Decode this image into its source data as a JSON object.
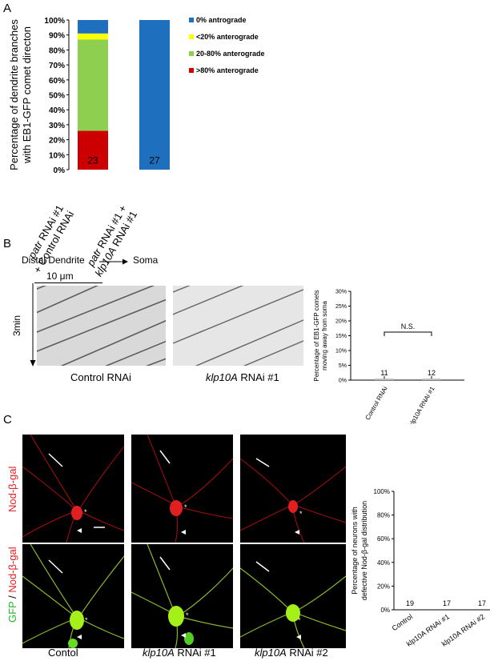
{
  "panel_a": {
    "letter": "A",
    "legend": [
      {
        "label": "0% antrograde",
        "color": "#1f6fbf"
      },
      {
        "label": "<20% anterograde",
        "color": "#ffff00"
      },
      {
        "label": "20-80%  anterograde",
        "color": "#8ecf4f"
      },
      {
        "label": ">80% anterograde",
        "color": "#cc0000"
      }
    ],
    "bar_labels": [
      {
        "line1_italic": "patr",
        "line1_rest": " RNAi #1",
        "line2_prefix": "+ Control RNAi",
        "line2_italic": ""
      },
      {
        "line1_italic": "patr",
        "line1_rest": " RNAi #1 +",
        "line2_prefix": "",
        "line2_italic": "klp10A"
      }
    ],
    "bar2_line2_rest": " RNAi #1"
  },
  "panel_b": {
    "letter": "B",
    "direction_from": "Distal Dendrite",
    "direction_to": "Soma",
    "scale_label": "10 μm",
    "time_label": "3min",
    "kymo_labels": [
      {
        "italic": "",
        "rest": "Control RNAi"
      },
      {
        "italic": "klp10A",
        "rest": " RNAi #1"
      }
    ]
  },
  "panel_c": {
    "letter": "C",
    "row1_label": "Nod-β-gal",
    "row2_label_green": "GFP",
    "row2_label_sep": " / ",
    "row2_label_red": "Nod-β-gal",
    "col_labels": [
      {
        "italic": "",
        "rest": "Contol"
      },
      {
        "italic": "klp10A",
        "rest": " RNAi #1"
      },
      {
        "italic": "klp10A",
        "rest": " RNAi #2"
      }
    ]
  },
  "chart_data": [
    {
      "type": "bar",
      "stacked": true,
      "categories": [
        "patr RNAi #1 + Control RNAi",
        "patr RNAi #1 + klp10A RNAi #1"
      ],
      "series": [
        {
          "name": ">80% anterograde",
          "values": [
            26,
            0
          ],
          "color": "#cc0000"
        },
        {
          "name": "20-80%  anterograde",
          "values": [
            61,
            0
          ],
          "color": "#8ecf4f"
        },
        {
          "name": "<20% anterograde",
          "values": [
            4,
            0
          ],
          "color": "#ffff00"
        },
        {
          "name": "0% antrograde",
          "values": [
            9,
            100
          ],
          "color": "#1f6fbf"
        }
      ],
      "bar_counts": [
        "23",
        "27"
      ],
      "ylabel_lines": [
        "Percentage of dendrite branches",
        "with EB1-GFP comet directon"
      ],
      "yticks": [
        "0%",
        "10%",
        "20%",
        "30%",
        "40%",
        "50%",
        "60%",
        "70%",
        "80%",
        "90%",
        "100%"
      ],
      "ylim": [
        0,
        100
      ]
    },
    {
      "type": "bar",
      "categories": [
        "Control RNAi",
        "klp10A RNAi #1"
      ],
      "values": [
        0.5,
        0.5
      ],
      "counts": [
        "11",
        "12"
      ],
      "significance": "N.S.",
      "ylabel_lines": [
        "Percentage of EB1-GFP comets",
        "moving away from soma"
      ],
      "yticks": [
        "0%",
        "5%",
        "10%",
        "15%",
        "20%",
        "25%",
        "30%"
      ],
      "ylim": [
        0,
        30
      ]
    },
    {
      "type": "bar",
      "categories": [
        "Control",
        "klp10A RNAi #1",
        "klp10A RNAi #2"
      ],
      "values": [
        0,
        0,
        0
      ],
      "counts": [
        "19",
        "17",
        "17"
      ],
      "ylabel_lines": [
        "Percentage of neurons with",
        "defective Nod-β-gal  distribution"
      ],
      "yticks": [
        "0%",
        "20%",
        "40%",
        "60%",
        "80%",
        "100%"
      ],
      "ylim": [
        0,
        100
      ]
    }
  ]
}
